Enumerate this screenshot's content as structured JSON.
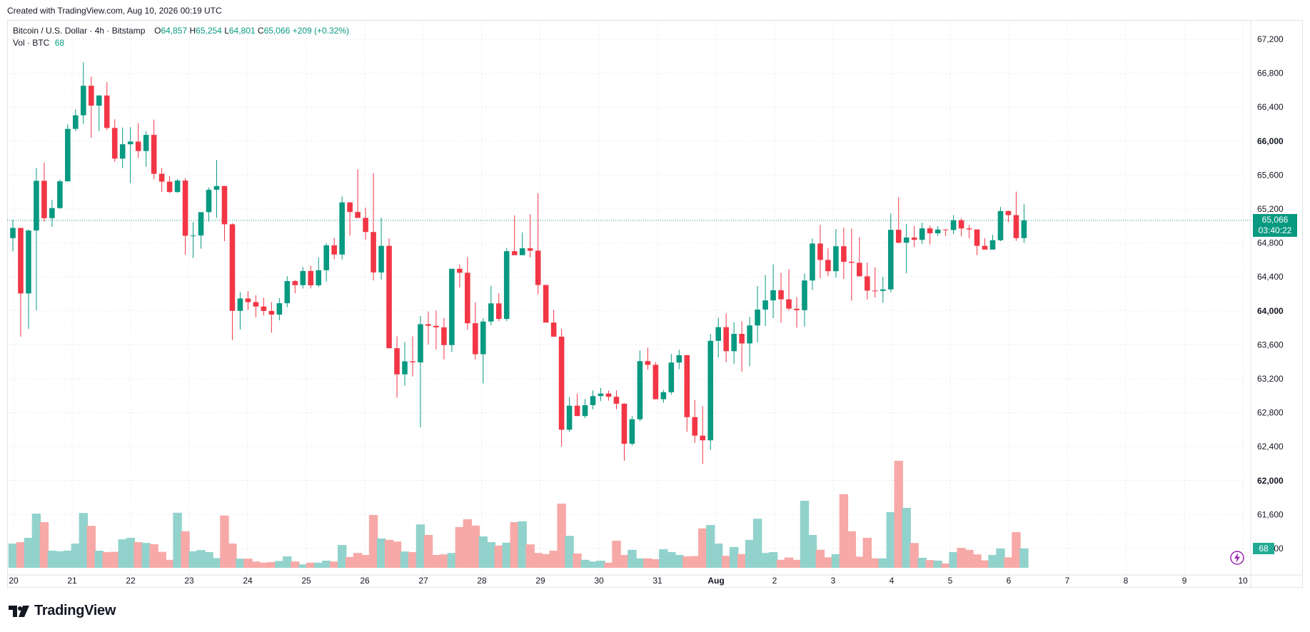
{
  "header": {
    "created": "Created with TradingView.com, Aug 10, 2026 00:19 UTC"
  },
  "legend": {
    "symbol": "Bitcoin / U.S. Dollar · 4h · Bitstamp",
    "o_label": "O",
    "o_value": "64,857",
    "h_label": "H",
    "h_value": "65,254",
    "l_label": "L",
    "l_value": "64,801",
    "c_label": "C",
    "c_value": "65,066",
    "change": "+209 (+0.32%)",
    "vol_label": "Vol · BTC",
    "vol_value": "68"
  },
  "price_tag": {
    "price": "65,066",
    "countdown": "03:40:22"
  },
  "volume_tag": "68",
  "brand": "TradingView",
  "colors": {
    "up": "#089981",
    "down": "#f23645",
    "vol_up": "#92d2cc",
    "vol_down": "#f7a9a7",
    "grid": "#e9ebf0"
  },
  "chart_data": {
    "type": "candlestick",
    "title": "Bitcoin / U.S. Dollar · 4h · Bitstamp",
    "interval": "4h",
    "y_axis": {
      "ticks": [
        "67,200",
        "66,800",
        "66,400",
        "66,000",
        "65,600",
        "65,200",
        "64,800",
        "64,400",
        "64,000",
        "63,600",
        "63,200",
        "62,800",
        "62,400",
        "62,000",
        "61,600",
        "61,200"
      ],
      "bold_ticks": [
        "66,000",
        "64,000",
        "62,000"
      ],
      "range": [
        60900,
        67400
      ]
    },
    "x_axis": {
      "ticks": [
        "20",
        "21",
        "22",
        "23",
        "24",
        "25",
        "26",
        "27",
        "28",
        "29",
        "30",
        "31",
        "Aug",
        "2",
        "3",
        "4",
        "5",
        "6",
        "7",
        "8",
        "9",
        "10"
      ],
      "bold_ticks": [
        "Aug"
      ]
    },
    "volume_max": 480,
    "candles": [
      [
        64857,
        65073,
        64700,
        64977,
        85
      ],
      [
        64977,
        64977,
        63696,
        64205,
        90
      ],
      [
        64205,
        64955,
        63788,
        64947,
        105
      ],
      [
        64947,
        65684,
        64007,
        65532,
        190
      ],
      [
        65532,
        65747,
        65050,
        65092,
        160
      ],
      [
        65092,
        65308,
        64990,
        65211,
        60
      ],
      [
        65211,
        65547,
        65203,
        65526,
        58
      ],
      [
        65526,
        66196,
        65526,
        66144,
        60
      ],
      [
        66144,
        66372,
        66118,
        66304,
        85
      ],
      [
        66304,
        66928,
        66199,
        66652,
        192
      ],
      [
        66652,
        66759,
        66040,
        66418,
        147
      ],
      [
        66418,
        66542,
        66118,
        66537,
        60
      ],
      [
        66537,
        66695,
        66130,
        66155,
        55
      ],
      [
        66155,
        66256,
        65755,
        65794,
        56
      ],
      [
        65794,
        66160,
        65680,
        65963,
        100
      ],
      [
        65963,
        66165,
        65504,
        65994,
        105
      ],
      [
        65994,
        66212,
        65801,
        65883,
        90
      ],
      [
        65883,
        66116,
        65698,
        66073,
        87
      ],
      [
        66073,
        66253,
        65550,
        65615,
        83
      ],
      [
        65615,
        65684,
        65402,
        65522,
        56
      ],
      [
        65522,
        65586,
        65387,
        65400,
        28
      ],
      [
        65400,
        65554,
        65390,
        65535,
        193
      ],
      [
        65535,
        65565,
        64662,
        64885,
        128
      ],
      [
        64885,
        65046,
        64623,
        64888,
        58
      ],
      [
        64888,
        65137,
        64733,
        65163,
        62
      ],
      [
        65163,
        65452,
        65050,
        65426,
        55
      ],
      [
        65426,
        65778,
        65095,
        65471,
        34
      ],
      [
        65471,
        65461,
        64821,
        65020,
        183
      ],
      [
        65020,
        65032,
        63655,
        64000,
        85
      ],
      [
        64000,
        64221,
        63780,
        64146,
        32
      ],
      [
        64146,
        64233,
        64010,
        64103,
        32
      ],
      [
        64103,
        64184,
        63925,
        64051,
        22
      ],
      [
        64051,
        64155,
        63944,
        63999,
        18
      ],
      [
        63999,
        64104,
        63743,
        63956,
        20
      ],
      [
        63956,
        64149,
        63889,
        64090,
        24
      ],
      [
        64090,
        64408,
        64043,
        64351,
        40
      ],
      [
        64351,
        64364,
        64207,
        64303,
        22
      ],
      [
        64303,
        64519,
        64263,
        64470,
        12
      ],
      [
        64470,
        64532,
        64265,
        64301,
        18
      ],
      [
        64301,
        64630,
        64281,
        64479,
        18
      ],
      [
        64479,
        64795,
        64344,
        64772,
        25
      ],
      [
        64772,
        64861,
        64606,
        64664,
        22
      ],
      [
        64664,
        65347,
        64607,
        65278,
        80
      ],
      [
        65278,
        65279,
        64886,
        65165,
        38
      ],
      [
        65165,
        65666,
        65148,
        65095,
        52
      ],
      [
        65095,
        65216,
        64838,
        64929,
        45
      ],
      [
        64929,
        65623,
        64359,
        64453,
        185
      ],
      [
        64453,
        65097,
        64367,
        64766,
        103
      ],
      [
        64766,
        64854,
        63555,
        63560,
        98
      ],
      [
        63560,
        63700,
        62976,
        63252,
        92
      ],
      [
        63252,
        63633,
        63120,
        63405,
        57
      ],
      [
        63405,
        63699,
        63226,
        63393,
        55
      ],
      [
        63393,
        63941,
        62627,
        63843,
        152
      ],
      [
        63843,
        63994,
        63604,
        63824,
        115
      ],
      [
        63824,
        64004,
        63543,
        63806,
        45
      ],
      [
        63806,
        63917,
        63428,
        63597,
        47
      ],
      [
        63597,
        64456,
        63514,
        64496,
        52
      ],
      [
        64496,
        64547,
        64275,
        64449,
        143
      ],
      [
        64449,
        64635,
        63778,
        63854,
        170
      ],
      [
        63854,
        64099,
        63428,
        63489,
        148
      ],
      [
        63489,
        63913,
        63145,
        63874,
        110
      ],
      [
        63874,
        64294,
        63829,
        64088,
        90
      ],
      [
        64088,
        64207,
        63879,
        63905,
        78
      ],
      [
        63905,
        64741,
        63879,
        64703,
        88
      ],
      [
        64703,
        65125,
        64669,
        64656,
        160
      ],
      [
        64656,
        64924,
        64679,
        64737,
        163
      ],
      [
        64737,
        65138,
        64629,
        64709,
        82
      ],
      [
        64709,
        65388,
        64195,
        64305,
        52
      ],
      [
        64305,
        64295,
        63865,
        63862,
        48
      ],
      [
        63862,
        64012,
        63761,
        63696,
        60
      ],
      [
        63696,
        63787,
        62402,
        62600,
        225
      ],
      [
        62600,
        62985,
        62574,
        62883,
        112
      ],
      [
        62883,
        63025,
        62776,
        62761,
        50
      ],
      [
        62761,
        62961,
        62737,
        62889,
        28
      ],
      [
        62889,
        63063,
        62839,
        62996,
        22
      ],
      [
        62996,
        63091,
        62937,
        63026,
        25
      ],
      [
        63026,
        63061,
        62944,
        62988,
        18
      ],
      [
        62988,
        63064,
        62840,
        62906,
        95
      ],
      [
        62906,
        62913,
        62234,
        62434,
        45
      ],
      [
        62434,
        62759,
        62414,
        62723,
        63
      ],
      [
        62723,
        63533,
        62699,
        63408,
        33
      ],
      [
        63408,
        63565,
        63305,
        63364,
        33
      ],
      [
        63364,
        63396,
        62958,
        62959,
        30
      ],
      [
        62959,
        63071,
        62917,
        63042,
        65
      ],
      [
        63042,
        63493,
        63014,
        63391,
        55
      ],
      [
        63391,
        63541,
        63313,
        63478,
        45
      ],
      [
        63478,
        63481,
        62576,
        62748,
        40
      ],
      [
        62748,
        62951,
        62444,
        62530,
        41
      ],
      [
        62530,
        62876,
        62195,
        62475,
        138
      ],
      [
        62475,
        63728,
        62362,
        63647,
        150
      ],
      [
        63647,
        63920,
        63449,
        63808,
        85
      ],
      [
        63808,
        63969,
        63396,
        63525,
        42
      ],
      [
        63525,
        63864,
        63375,
        63729,
        73
      ],
      [
        63729,
        63877,
        63284,
        63616,
        48
      ],
      [
        63616,
        63929,
        63349,
        63828,
        98
      ],
      [
        63828,
        64293,
        63628,
        64015,
        172
      ],
      [
        64015,
        64422,
        63822,
        64123,
        52
      ],
      [
        64123,
        64548,
        63914,
        64243,
        55
      ],
      [
        64243,
        64447,
        63859,
        64136,
        28
      ],
      [
        64136,
        64492,
        64004,
        64026,
        36
      ],
      [
        64026,
        64162,
        63803,
        64008,
        28
      ],
      [
        64008,
        64440,
        63814,
        64358,
        235
      ],
      [
        64358,
        64851,
        64244,
        64793,
        115
      ],
      [
        64793,
        65013,
        64386,
        64600,
        63
      ],
      [
        64600,
        64737,
        64409,
        64467,
        37
      ],
      [
        64467,
        64964,
        64392,
        64761,
        48
      ],
      [
        64761,
        64980,
        64376,
        64578,
        258
      ],
      [
        64578,
        64968,
        64121,
        64566,
        128
      ],
      [
        64566,
        64869,
        64437,
        64407,
        39
      ],
      [
        64407,
        64569,
        64133,
        64239,
        105
      ],
      [
        64239,
        64512,
        64157,
        64235,
        33
      ],
      [
        64235,
        64401,
        64094,
        64253,
        33
      ],
      [
        64253,
        65146,
        64221,
        64955,
        195
      ],
      [
        64955,
        65338,
        64796,
        64803,
        375
      ],
      [
        64803,
        65025,
        64444,
        64864,
        210
      ],
      [
        64864,
        65002,
        64751,
        64837,
        87
      ],
      [
        64837,
        65040,
        64787,
        64972,
        35
      ],
      [
        64972,
        65004,
        64782,
        64914,
        27
      ],
      [
        64914,
        64999,
        64883,
        64958,
        25
      ],
      [
        64958,
        64960,
        64880,
        64952,
        15
      ],
      [
        64952,
        65128,
        64903,
        65067,
        55
      ],
      [
        65067,
        65094,
        64878,
        64971,
        70
      ],
      [
        64971,
        65009,
        64853,
        64959,
        63
      ],
      [
        64959,
        64920,
        64655,
        64766,
        47
      ],
      [
        64766,
        64855,
        64750,
        64722,
        26
      ],
      [
        64722,
        64895,
        64775,
        64832,
        45
      ],
      [
        64832,
        65224,
        64822,
        65176,
        68
      ],
      [
        65176,
        65180,
        65045,
        65128,
        37
      ],
      [
        65128,
        65405,
        64825,
        64857,
        125
      ],
      [
        64857,
        65254,
        64801,
        65066,
        68
      ]
    ]
  }
}
